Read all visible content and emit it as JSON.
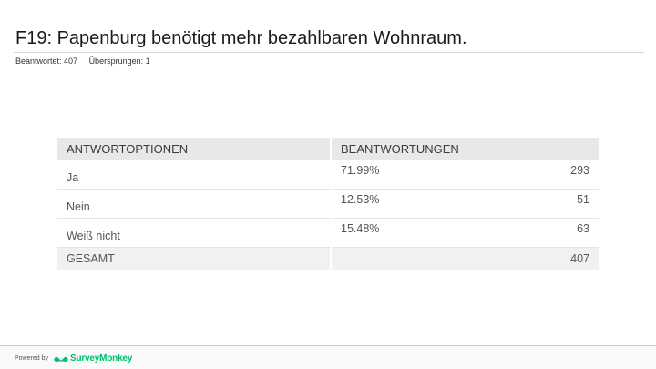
{
  "question": {
    "title": "F19: Papenburg benötigt mehr bezahlbaren Wohnraum.",
    "answered_label": "Beantwortet: 407",
    "skipped_label": "Übersprungen: 1"
  },
  "table": {
    "headers": [
      "ANTWORTOPTIONEN",
      "BEANTWORTUNGEN"
    ],
    "rows": [
      {
        "option": "Ja",
        "percent": "71.99%",
        "count": "293"
      },
      {
        "option": "Nein",
        "percent": "12.53%",
        "count": "51"
      },
      {
        "option": "Weiß nicht",
        "percent": "15.48%",
        "count": "63"
      }
    ],
    "total": {
      "label": "GESAMT",
      "count": "407"
    }
  },
  "footer": {
    "powered_by": "Powered by",
    "brand": "SurveyMonkey",
    "brand_color": "#00bf6f",
    "brand_icon": "surveymonkey-logo-icon"
  }
}
